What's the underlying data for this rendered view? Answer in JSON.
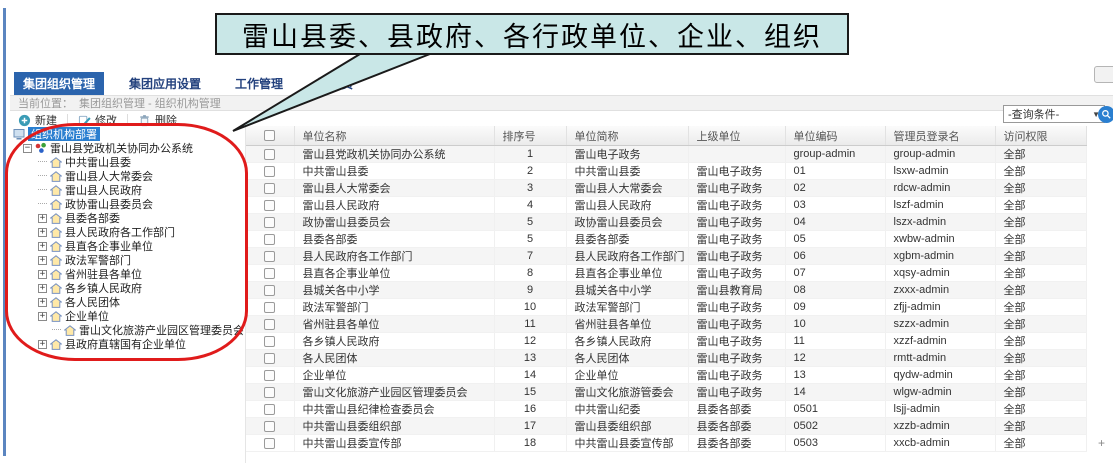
{
  "callout": {
    "text": "雷山县委、县政府、各行政单位、企业、组织"
  },
  "tabs": {
    "items": [
      {
        "label": "集团组织管理",
        "active": true
      },
      {
        "label": "集团应用设置",
        "active": false
      },
      {
        "label": "工作管理",
        "active": false
      },
      {
        "label": "管理员",
        "active": false
      }
    ]
  },
  "breadcrumb": {
    "label": "当前位置：",
    "path": "集团组织管理 - 组织机构管理"
  },
  "toolbar": {
    "new_label": "新建",
    "modify_label": "修改",
    "delete_label": "删除"
  },
  "query": {
    "selected": "-查询条件-",
    "caret": "▼"
  },
  "icons": {
    "plus": "+",
    "minus": "−",
    "search": "magnifier",
    "tree_leaf": "house",
    "artifact_plus": "+"
  },
  "colors": {
    "accent_blue": "#2b64ad",
    "selection_blue": "#2a7fd0",
    "callout_fill": "#c9e7e7",
    "highlight_red": "#e01b1b"
  },
  "tree": {
    "root_label": "组织机构部署",
    "system_label": "雷山县党政机关协同办公系统",
    "nodes": [
      {
        "label": "中共雷山县委",
        "expand": "leaf",
        "depth": 2
      },
      {
        "label": "雷山县人大常委会",
        "expand": "leaf",
        "depth": 2
      },
      {
        "label": "雷山县人民政府",
        "expand": "leaf",
        "depth": 2
      },
      {
        "label": "政协雷山县委员会",
        "expand": "leaf",
        "depth": 2
      },
      {
        "label": "县委各部委",
        "expand": "plus",
        "depth": 2
      },
      {
        "label": "县人民政府各工作部门",
        "expand": "plus",
        "depth": 2
      },
      {
        "label": "县直各企事业单位",
        "expand": "plus",
        "depth": 2
      },
      {
        "label": "政法军警部门",
        "expand": "plus",
        "depth": 2
      },
      {
        "label": "省州驻县各单位",
        "expand": "plus",
        "depth": 2
      },
      {
        "label": "各乡镇人民政府",
        "expand": "plus",
        "depth": 2
      },
      {
        "label": "各人民团体",
        "expand": "plus",
        "depth": 2
      },
      {
        "label": "企业单位",
        "expand": "plus",
        "depth": 2
      },
      {
        "label": "雷山文化旅游产业园区管理委员会",
        "expand": "leaf",
        "depth": 3
      },
      {
        "label": "县政府直辖国有企业单位",
        "expand": "plus",
        "depth": 2
      }
    ]
  },
  "table": {
    "headers": [
      "单位名称",
      "排序号",
      "单位简称",
      "上级单位",
      "单位编码",
      "管理员登录名",
      "访问权限"
    ],
    "rows": [
      {
        "name": "雷山县党政机关协同办公系统",
        "sort": "1",
        "short": "雷山电子政务",
        "parent": "",
        "code": "group-admin",
        "admin": "group-admin",
        "access": "全部"
      },
      {
        "name": "中共雷山县委",
        "sort": "2",
        "short": "中共雷山县委",
        "parent": "雷山电子政务",
        "code": "01",
        "admin": "lsxw-admin",
        "access": "全部"
      },
      {
        "name": "雷山县人大常委会",
        "sort": "3",
        "short": "雷山县人大常委会",
        "parent": "雷山电子政务",
        "code": "02",
        "admin": "rdcw-admin",
        "access": "全部"
      },
      {
        "name": "雷山县人民政府",
        "sort": "4",
        "short": "雷山县人民政府",
        "parent": "雷山电子政务",
        "code": "03",
        "admin": "lszf-admin",
        "access": "全部"
      },
      {
        "name": "政协雷山县委员会",
        "sort": "5",
        "short": "政协雷山县委员会",
        "parent": "雷山电子政务",
        "code": "04",
        "admin": "lszx-admin",
        "access": "全部"
      },
      {
        "name": "县委各部委",
        "sort": "5",
        "short": "县委各部委",
        "parent": "雷山电子政务",
        "code": "05",
        "admin": "xwbw-admin",
        "access": "全部"
      },
      {
        "name": "县人民政府各工作部门",
        "sort": "7",
        "short": "县人民政府各工作部门",
        "parent": "雷山电子政务",
        "code": "06",
        "admin": "xgbm-admin",
        "access": "全部"
      },
      {
        "name": "县直各企事业单位",
        "sort": "8",
        "short": "县直各企事业单位",
        "parent": "雷山电子政务",
        "code": "07",
        "admin": "xqsy-admin",
        "access": "全部"
      },
      {
        "name": "县城关各中小学",
        "sort": "9",
        "short": "县城关各中小学",
        "parent": "雷山县教育局",
        "code": "08",
        "admin": "zxxx-admin",
        "access": "全部"
      },
      {
        "name": "政法军警部门",
        "sort": "10",
        "short": "政法军警部门",
        "parent": "雷山电子政务",
        "code": "09",
        "admin": "zfjj-admin",
        "access": "全部"
      },
      {
        "name": "省州驻县各单位",
        "sort": "11",
        "short": "省州驻县各单位",
        "parent": "雷山电子政务",
        "code": "10",
        "admin": "szzx-admin",
        "access": "全部"
      },
      {
        "name": "各乡镇人民政府",
        "sort": "12",
        "short": "各乡镇人民政府",
        "parent": "雷山电子政务",
        "code": "11",
        "admin": "xzzf-admin",
        "access": "全部"
      },
      {
        "name": "各人民团体",
        "sort": "13",
        "short": "各人民团体",
        "parent": "雷山电子政务",
        "code": "12",
        "admin": "rmtt-admin",
        "access": "全部"
      },
      {
        "name": "企业单位",
        "sort": "14",
        "short": "企业单位",
        "parent": "雷山电子政务",
        "code": "13",
        "admin": "qydw-admin",
        "access": "全部"
      },
      {
        "name": "雷山文化旅游产业园区管理委员会",
        "sort": "15",
        "short": "雷山文化旅游管委会",
        "parent": "雷山电子政务",
        "code": "14",
        "admin": "wlgw-admin",
        "access": "全部"
      },
      {
        "name": "中共雷山县纪律检查委员会",
        "sort": "16",
        "short": "中共雷山纪委",
        "parent": "县委各部委",
        "code": "0501",
        "admin": "lsjj-admin",
        "access": "全部"
      },
      {
        "name": "中共雷山县委组织部",
        "sort": "17",
        "short": "雷山县委组织部",
        "parent": "县委各部委",
        "code": "0502",
        "admin": "xzzb-admin",
        "access": "全部"
      },
      {
        "name": "中共雷山县委宣传部",
        "sort": "18",
        "short": "中共雷山县委宣传部",
        "parent": "县委各部委",
        "code": "0503",
        "admin": "xxcb-admin",
        "access": "全部"
      }
    ]
  }
}
